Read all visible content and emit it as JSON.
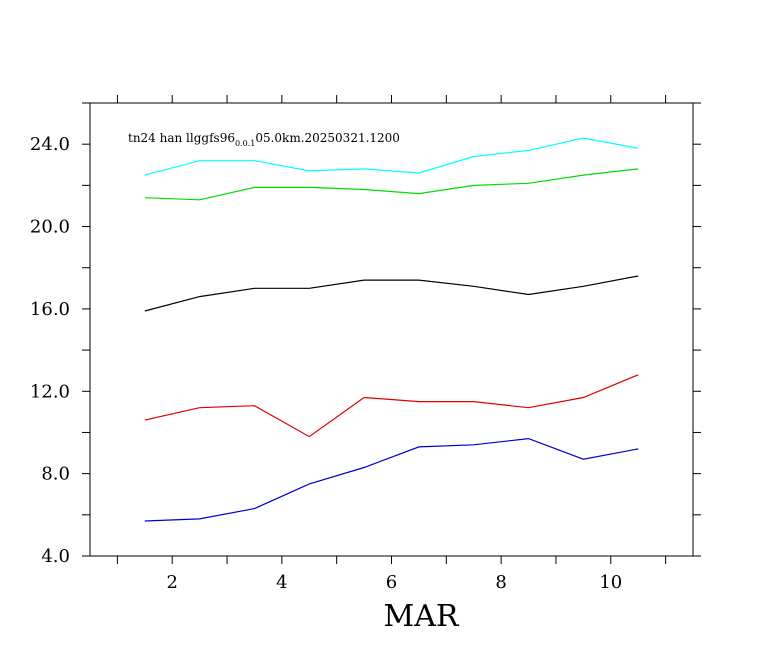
{
  "chart_data": {
    "type": "line",
    "title_main": "tn24 han llggfs96",
    "title_sub": "0.0.1",
    "title_tail": "05.0km.20250321.1200",
    "xlabel": "MAR",
    "ylabel": "",
    "xlim": [
      0.5,
      11.5
    ],
    "ylim": [
      4.0,
      26.0
    ],
    "x_ticks_minor": [
      1,
      2,
      3,
      4,
      5,
      6,
      7,
      8,
      9,
      10,
      11
    ],
    "x_tick_labels": [
      {
        "x": 2,
        "label": "2"
      },
      {
        "x": 4,
        "label": "4"
      },
      {
        "x": 6,
        "label": "6"
      },
      {
        "x": 8,
        "label": "8"
      },
      {
        "x": 10,
        "label": "10"
      }
    ],
    "y_ticks_minor": [
      4,
      6,
      8,
      10,
      12,
      14,
      16,
      18,
      20,
      22,
      24,
      26
    ],
    "y_tick_labels": [
      {
        "y": 4,
        "label": "4.0"
      },
      {
        "y": 8,
        "label": "8.0"
      },
      {
        "y": 12,
        "label": "12.0"
      },
      {
        "y": 16,
        "label": "16.0"
      },
      {
        "y": 20,
        "label": "20.0"
      },
      {
        "y": 24,
        "label": "24.0"
      }
    ],
    "grid": false,
    "x": [
      1.5,
      2.5,
      3.5,
      4.5,
      5.5,
      6.5,
      7.5,
      8.5,
      9.5,
      10.5
    ],
    "series": [
      {
        "color": "#00ffff",
        "values": [
          22.5,
          23.2,
          23.2,
          22.7,
          22.8,
          22.6,
          23.4,
          23.7,
          24.3,
          23.8
        ]
      },
      {
        "color": "#00dd00",
        "values": [
          21.4,
          21.3,
          21.9,
          21.9,
          21.8,
          21.6,
          22.0,
          22.1,
          22.5,
          22.8
        ]
      },
      {
        "color": "#000000",
        "values": [
          15.9,
          16.6,
          17.0,
          17.0,
          17.4,
          17.4,
          17.1,
          16.7,
          17.1,
          17.6
        ]
      },
      {
        "color": "#dd0000",
        "values": [
          10.6,
          11.2,
          11.3,
          9.8,
          11.7,
          11.5,
          11.5,
          11.2,
          11.7,
          12.8
        ]
      },
      {
        "color": "#0000cc",
        "values": [
          5.7,
          5.8,
          6.3,
          7.5,
          8.3,
          9.3,
          9.4,
          9.7,
          8.7,
          9.2
        ]
      }
    ]
  }
}
